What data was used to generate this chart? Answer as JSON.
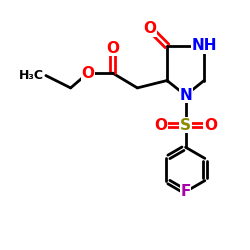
{
  "bg_color": "#ffffff",
  "bond_color": "#000000",
  "bond_width": 2.0,
  "font_size_atoms": 11,
  "font_size_h3c": 9,
  "colors": {
    "O": "#ff0000",
    "N": "#0000ff",
    "S": "#8b8b00",
    "F": "#aa00aa",
    "C": "#000000"
  }
}
